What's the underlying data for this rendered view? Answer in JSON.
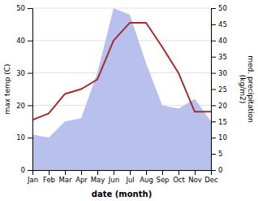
{
  "chart_data": {
    "type": "line",
    "categories": [
      "Jan",
      "Feb",
      "Mar",
      "Apr",
      "May",
      "Jun",
      "Jul",
      "Aug",
      "Sep",
      "Oct",
      "Nov",
      "Dec"
    ],
    "series": [
      {
        "type": "area",
        "color": "#b8c0ee",
        "axis": "y2",
        "values": [
          11,
          10,
          15,
          16,
          30,
          50,
          48,
          33,
          20,
          19,
          22,
          15
        ]
      },
      {
        "type": "line",
        "color": "#a03030",
        "values": [
          15.5,
          17.5,
          23.5,
          25.0,
          28.0,
          40.0,
          45.5,
          45.5,
          38.0,
          30.0,
          18.0,
          18.0
        ]
      }
    ],
    "xlabel": "date (month)",
    "ylabel": "max temp (C)",
    "y2label": "med. precipitation\n(kg/m2)",
    "ylim": [
      0,
      50
    ],
    "yticks": [
      0,
      10,
      20,
      30,
      40,
      50
    ],
    "y2lim": [
      0,
      50
    ],
    "y2ticks": [
      0,
      5,
      10,
      15,
      20,
      25,
      30,
      35,
      40,
      45,
      50
    ],
    "grid": true
  }
}
